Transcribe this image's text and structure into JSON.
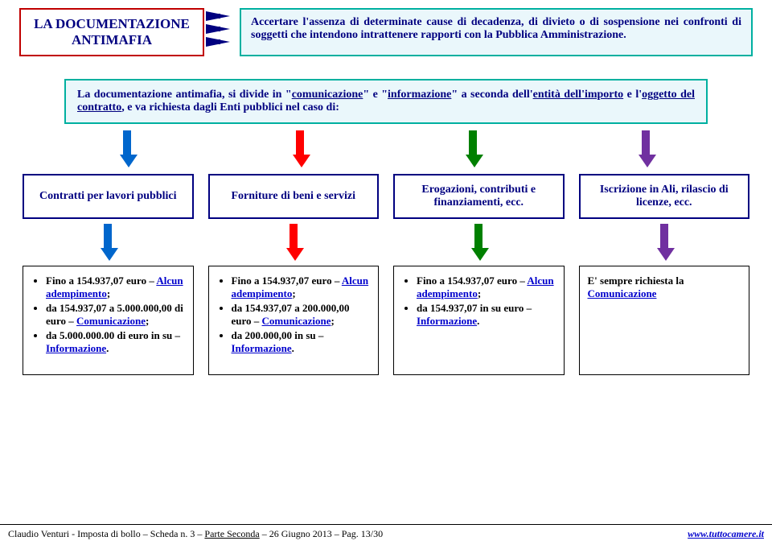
{
  "colors": {
    "title_border": "#c00000",
    "title_text": "#000080",
    "teal_border": "#00b0a0",
    "teal_bg": "#eaf7fb",
    "navy": "#000080",
    "link": "#0000cc",
    "arrows": [
      "#0066cc",
      "#ff0000",
      "#008000",
      "#7030a0"
    ]
  },
  "title": {
    "line1": "LA DOCUMENTAZIONE",
    "line2": "ANTIMAFIA"
  },
  "top_desc": "Accertare l'assenza di determinate cause di decadenza, di divieto o di sospensione nei confronti di soggetti che intendono intrattenere rapporti con la Pubblica Amministrazione.",
  "middle": {
    "pre1": "La documentazione antimafia, si divide in \"",
    "u1": "comunicazione",
    "mid1": "\" e \"",
    "u2": "informazione",
    "mid2": "\" a seconda dell'",
    "u3": "entità dell'importo",
    "mid3": " e l'",
    "u4": "oggetto del contratto",
    "post": ", e va richiesta dagli Enti pubblici nel caso di:"
  },
  "categories": [
    "Contratti per lavori pubblici",
    "Forniture di beni e servizi",
    "Erogazioni, contributi e finanziamenti, ecc.",
    "Iscrizione in Ali, rilascio di licenze, ecc."
  ],
  "details": [
    {
      "items": [
        {
          "pre": "Fino a 154.937,07 euro – ",
          "link": "Alcun adempimento",
          "post": ";"
        },
        {
          "pre": "da 154.937,07 a 5.000.000,00 di euro – ",
          "link": "Comunicazione",
          "post": ";"
        },
        {
          "pre": "da 5.000.000.00 di euro in su – ",
          "link": "Informazione",
          "post": "."
        }
      ]
    },
    {
      "items": [
        {
          "pre": "Fino a 154.937,07 euro – ",
          "link": "Alcun adempimento",
          "post": ";"
        },
        {
          "pre": "da 154.937,07 a 200.000,00 euro – ",
          "link": "Comunicazione",
          "post": ";"
        },
        {
          "pre": "da 200.000,00 in su – ",
          "link": "Informazione",
          "post": "."
        }
      ]
    },
    {
      "items": [
        {
          "pre": "Fino a 154.937,07 euro – ",
          "link": "Alcun adempimento",
          "post": ";"
        },
        {
          "pre": "da 154.937,07 in su euro – ",
          "link": "Informazione",
          "post": "."
        }
      ]
    },
    {
      "items": [
        {
          "pre": "E' sempre richiesta la ",
          "link": "Comunicazione",
          "post": ""
        }
      ],
      "no_bullet": true
    }
  ],
  "footer": {
    "left_pre": "Claudio Venturi - Imposta di bollo – Scheda n. 3 – ",
    "left_u": "Parte Seconda",
    "left_post": " – 26 Giugno 2013 – Pag. 13/30",
    "right": "www.tuttocamere.it"
  }
}
